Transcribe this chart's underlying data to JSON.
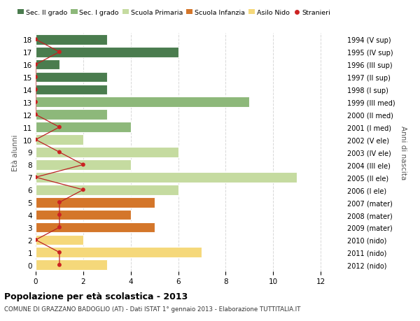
{
  "ages": [
    18,
    17,
    16,
    15,
    14,
    13,
    12,
    11,
    10,
    9,
    8,
    7,
    6,
    5,
    4,
    3,
    2,
    1,
    0
  ],
  "years": [
    "1994 (V sup)",
    "1995 (IV sup)",
    "1996 (III sup)",
    "1997 (II sup)",
    "1998 (I sup)",
    "1999 (III med)",
    "2000 (II med)",
    "2001 (I med)",
    "2002 (V ele)",
    "2003 (IV ele)",
    "2004 (III ele)",
    "2005 (II ele)",
    "2006 (I ele)",
    "2007 (mater)",
    "2008 (mater)",
    "2009 (mater)",
    "2010 (nido)",
    "2011 (nido)",
    "2012 (nido)"
  ],
  "bar_values": [
    3,
    6,
    1,
    3,
    3,
    9,
    3,
    4,
    2,
    6,
    4,
    11,
    6,
    5,
    4,
    5,
    2,
    7,
    3
  ],
  "bar_colors": [
    "#4a7c4e",
    "#4a7c4e",
    "#4a7c4e",
    "#4a7c4e",
    "#4a7c4e",
    "#8db87a",
    "#8db87a",
    "#8db87a",
    "#c5dba0",
    "#c5dba0",
    "#c5dba0",
    "#c5dba0",
    "#c5dba0",
    "#d4762a",
    "#d4762a",
    "#d4762a",
    "#f5d87a",
    "#f5d87a",
    "#f5d87a"
  ],
  "stranieri_x": [
    0,
    1,
    0,
    0,
    0,
    0,
    0,
    1,
    0,
    1,
    2,
    0,
    2,
    1,
    1,
    1,
    0,
    1,
    1
  ],
  "title_bold": "Popolazione per età scolastica - 2013",
  "subtitle": "COMUNE DI GRAZZANO BADOGLIO (AT) - Dati ISTAT 1° gennaio 2013 - Elaborazione TUTTITALIA.IT",
  "ylabel_left": "Età alunni",
  "ylabel_right": "Anni di nascita",
  "legend_labels": [
    "Sec. II grado",
    "Sec. I grado",
    "Scuola Primaria",
    "Scuola Infanzia",
    "Asilo Nido",
    "Stranieri"
  ],
  "legend_colors": [
    "#4a7c4e",
    "#8db87a",
    "#c5dba0",
    "#d4762a",
    "#f5d87a",
    "#cc2222"
  ],
  "bg_color": "#ffffff",
  "grid_color": "#d8d8d8",
  "xlim": [
    0,
    13
  ],
  "xticks": [
    0,
    2,
    4,
    6,
    8,
    10,
    12
  ]
}
